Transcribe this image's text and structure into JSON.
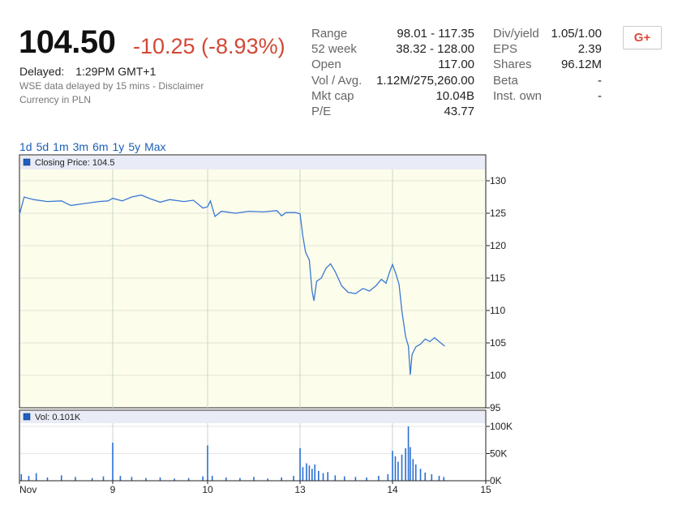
{
  "quote": {
    "price": "104.50",
    "change": "-10.25 (-8.93%)",
    "delayed_label": "Delayed:",
    "delayed_time": "1:29PM GMT+1",
    "disclaimer": "WSE data delayed by 15 mins - Disclaimer",
    "currency": "Currency in PLN"
  },
  "stats_left": [
    {
      "label": "Range",
      "value": "98.01 - 117.35"
    },
    {
      "label": "52 week",
      "value": "38.32 - 128.00"
    },
    {
      "label": "Open",
      "value": "117.00"
    },
    {
      "label": "Vol / Avg.",
      "value": "1.12M/275,260.00"
    },
    {
      "label": "Mkt cap",
      "value": "10.04B"
    },
    {
      "label": "P/E",
      "value": "43.77"
    }
  ],
  "stats_right": [
    {
      "label": "Div/yield",
      "value": "1.05/1.00"
    },
    {
      "label": "EPS",
      "value": "2.39"
    },
    {
      "label": "Shares",
      "value": "96.12M"
    },
    {
      "label": "Beta",
      "value": "-"
    },
    {
      "label": "Inst. own",
      "value": "-"
    }
  ],
  "share_button": "G+",
  "ranges": [
    "1d",
    "5d",
    "1m",
    "3m",
    "6m",
    "1y",
    "5y",
    "Max"
  ],
  "chart_data": [
    {
      "type": "line",
      "legend": "Closing Price: 104.5",
      "ylim": [
        95,
        130
      ],
      "yticks": [
        95,
        100,
        105,
        110,
        115,
        120,
        125,
        130
      ],
      "x_categories": [
        "Nov",
        "9",
        "10",
        "13",
        "14",
        "15"
      ],
      "points": [
        {
          "x": 0.0,
          "y": 124.8
        },
        {
          "x": 0.05,
          "y": 127.5
        },
        {
          "x": 0.15,
          "y": 127.1
        },
        {
          "x": 0.3,
          "y": 126.8
        },
        {
          "x": 0.45,
          "y": 126.9
        },
        {
          "x": 0.55,
          "y": 126.2
        },
        {
          "x": 0.7,
          "y": 126.5
        },
        {
          "x": 0.85,
          "y": 126.8
        },
        {
          "x": 0.95,
          "y": 126.9
        },
        {
          "x": 1.0,
          "y": 127.3
        },
        {
          "x": 1.1,
          "y": 126.9
        },
        {
          "x": 1.2,
          "y": 127.5
        },
        {
          "x": 1.3,
          "y": 127.8
        },
        {
          "x": 1.4,
          "y": 127.2
        },
        {
          "x": 1.5,
          "y": 126.7
        },
        {
          "x": 1.6,
          "y": 127.1
        },
        {
          "x": 1.75,
          "y": 126.8
        },
        {
          "x": 1.85,
          "y": 127.0
        },
        {
          "x": 1.95,
          "y": 125.8
        },
        {
          "x": 2.0,
          "y": 126.0
        },
        {
          "x": 2.03,
          "y": 126.9
        },
        {
          "x": 2.08,
          "y": 124.5
        },
        {
          "x": 2.15,
          "y": 125.3
        },
        {
          "x": 2.3,
          "y": 125.0
        },
        {
          "x": 2.45,
          "y": 125.3
        },
        {
          "x": 2.6,
          "y": 125.2
        },
        {
          "x": 2.75,
          "y": 125.4
        },
        {
          "x": 2.8,
          "y": 124.6
        },
        {
          "x": 2.85,
          "y": 125.1
        },
        {
          "x": 2.95,
          "y": 125.1
        },
        {
          "x": 3.0,
          "y": 124.9
        },
        {
          "x": 3.03,
          "y": 121.5
        },
        {
          "x": 3.06,
          "y": 119.0
        },
        {
          "x": 3.1,
          "y": 117.8
        },
        {
          "x": 3.13,
          "y": 113.0
        },
        {
          "x": 3.15,
          "y": 111.5
        },
        {
          "x": 3.18,
          "y": 114.5
        },
        {
          "x": 3.23,
          "y": 115.0
        },
        {
          "x": 3.28,
          "y": 116.5
        },
        {
          "x": 3.33,
          "y": 117.2
        },
        {
          "x": 3.38,
          "y": 116.0
        },
        {
          "x": 3.45,
          "y": 113.8
        },
        {
          "x": 3.52,
          "y": 112.8
        },
        {
          "x": 3.6,
          "y": 112.6
        },
        {
          "x": 3.68,
          "y": 113.4
        },
        {
          "x": 3.75,
          "y": 113.0
        },
        {
          "x": 3.82,
          "y": 113.8
        },
        {
          "x": 3.88,
          "y": 114.8
        },
        {
          "x": 3.93,
          "y": 114.2
        },
        {
          "x": 3.97,
          "y": 116.0
        },
        {
          "x": 4.0,
          "y": 117.1
        },
        {
          "x": 4.04,
          "y": 115.5
        },
        {
          "x": 4.07,
          "y": 114.0
        },
        {
          "x": 4.1,
          "y": 110.0
        },
        {
          "x": 4.14,
          "y": 106.0
        },
        {
          "x": 4.17,
          "y": 104.5
        },
        {
          "x": 4.19,
          "y": 100.1
        },
        {
          "x": 4.21,
          "y": 103.2
        },
        {
          "x": 4.25,
          "y": 104.4
        },
        {
          "x": 4.3,
          "y": 104.8
        },
        {
          "x": 4.35,
          "y": 105.6
        },
        {
          "x": 4.4,
          "y": 105.2
        },
        {
          "x": 4.45,
          "y": 105.8
        },
        {
          "x": 4.5,
          "y": 105.2
        },
        {
          "x": 4.56,
          "y": 104.5
        }
      ]
    },
    {
      "type": "bar",
      "legend": "Vol: 0.101K",
      "ylim": [
        0,
        100000
      ],
      "yticks": [
        "0K",
        "50K",
        "100K"
      ],
      "bars": [
        {
          "x": 0.02,
          "v": 12000
        },
        {
          "x": 0.1,
          "v": 9000
        },
        {
          "x": 0.18,
          "v": 14000
        },
        {
          "x": 0.3,
          "v": 6000
        },
        {
          "x": 0.45,
          "v": 10000
        },
        {
          "x": 0.6,
          "v": 7000
        },
        {
          "x": 0.78,
          "v": 5000
        },
        {
          "x": 0.9,
          "v": 8000
        },
        {
          "x": 1.0,
          "v": 70000
        },
        {
          "x": 1.08,
          "v": 9000
        },
        {
          "x": 1.2,
          "v": 7000
        },
        {
          "x": 1.35,
          "v": 5000
        },
        {
          "x": 1.5,
          "v": 6000
        },
        {
          "x": 1.65,
          "v": 4000
        },
        {
          "x": 1.8,
          "v": 5000
        },
        {
          "x": 1.95,
          "v": 8000
        },
        {
          "x": 2.0,
          "v": 65000
        },
        {
          "x": 2.05,
          "v": 9000
        },
        {
          "x": 2.2,
          "v": 6000
        },
        {
          "x": 2.35,
          "v": 5000
        },
        {
          "x": 2.5,
          "v": 7000
        },
        {
          "x": 2.65,
          "v": 4000
        },
        {
          "x": 2.8,
          "v": 6000
        },
        {
          "x": 2.93,
          "v": 9000
        },
        {
          "x": 3.0,
          "v": 60000
        },
        {
          "x": 3.03,
          "v": 25000
        },
        {
          "x": 3.07,
          "v": 32000
        },
        {
          "x": 3.1,
          "v": 28000
        },
        {
          "x": 3.13,
          "v": 22000
        },
        {
          "x": 3.16,
          "v": 30000
        },
        {
          "x": 3.2,
          "v": 18000
        },
        {
          "x": 3.25,
          "v": 14000
        },
        {
          "x": 3.3,
          "v": 16000
        },
        {
          "x": 3.38,
          "v": 10000
        },
        {
          "x": 3.48,
          "v": 8000
        },
        {
          "x": 3.6,
          "v": 7000
        },
        {
          "x": 3.72,
          "v": 6000
        },
        {
          "x": 3.85,
          "v": 9000
        },
        {
          "x": 3.95,
          "v": 12000
        },
        {
          "x": 4.0,
          "v": 55000
        },
        {
          "x": 4.03,
          "v": 45000
        },
        {
          "x": 4.06,
          "v": 35000
        },
        {
          "x": 4.1,
          "v": 48000
        },
        {
          "x": 4.14,
          "v": 60000
        },
        {
          "x": 4.17,
          "v": 100000
        },
        {
          "x": 4.19,
          "v": 62000
        },
        {
          "x": 4.22,
          "v": 40000
        },
        {
          "x": 4.25,
          "v": 30000
        },
        {
          "x": 4.3,
          "v": 22000
        },
        {
          "x": 4.35,
          "v": 15000
        },
        {
          "x": 4.42,
          "v": 12000
        },
        {
          "x": 4.5,
          "v": 9000
        },
        {
          "x": 4.55,
          "v": 7000
        }
      ]
    }
  ],
  "colors": {
    "positive_negative_change": "#d14836",
    "link": "#1a5fb4",
    "line": "#3a79d4",
    "plot_bg": "#fdfdec",
    "legend_bg": "#e9ebf6"
  }
}
